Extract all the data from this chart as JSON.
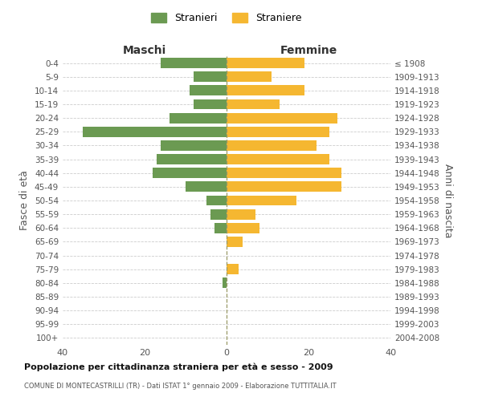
{
  "age_groups": [
    "0-4",
    "5-9",
    "10-14",
    "15-19",
    "20-24",
    "25-29",
    "30-34",
    "35-39",
    "40-44",
    "45-49",
    "50-54",
    "55-59",
    "60-64",
    "65-69",
    "70-74",
    "75-79",
    "80-84",
    "85-89",
    "90-94",
    "95-99",
    "100+"
  ],
  "birth_years": [
    "2004-2008",
    "1999-2003",
    "1994-1998",
    "1989-1993",
    "1984-1988",
    "1979-1983",
    "1974-1978",
    "1969-1973",
    "1964-1968",
    "1959-1963",
    "1954-1958",
    "1949-1953",
    "1944-1948",
    "1939-1943",
    "1934-1938",
    "1929-1933",
    "1924-1928",
    "1919-1923",
    "1914-1918",
    "1909-1913",
    "≤ 1908"
  ],
  "maschi": [
    16,
    8,
    9,
    8,
    14,
    35,
    16,
    17,
    18,
    10,
    5,
    4,
    3,
    0,
    0,
    0,
    1,
    0,
    0,
    0,
    0
  ],
  "femmine": [
    19,
    11,
    19,
    13,
    27,
    25,
    22,
    25,
    28,
    28,
    17,
    7,
    8,
    4,
    0,
    3,
    0,
    0,
    0,
    0,
    0
  ],
  "maschi_color": "#6b9a52",
  "femmine_color": "#f5b731",
  "background_color": "#ffffff",
  "grid_color": "#cccccc",
  "title": "Popolazione per cittadinanza straniera per età e sesso - 2009",
  "subtitle": "COMUNE DI MONTECASTRILLI (TR) - Dati ISTAT 1° gennaio 2009 - Elaborazione TUTTITALIA.IT",
  "ylabel_left": "Fasce di età",
  "ylabel_right": "Anni di nascita",
  "xlabel_left": "Maschi",
  "xlabel_right": "Femmine",
  "legend_maschi": "Stranieri",
  "legend_femmine": "Straniere",
  "xlim": 40
}
